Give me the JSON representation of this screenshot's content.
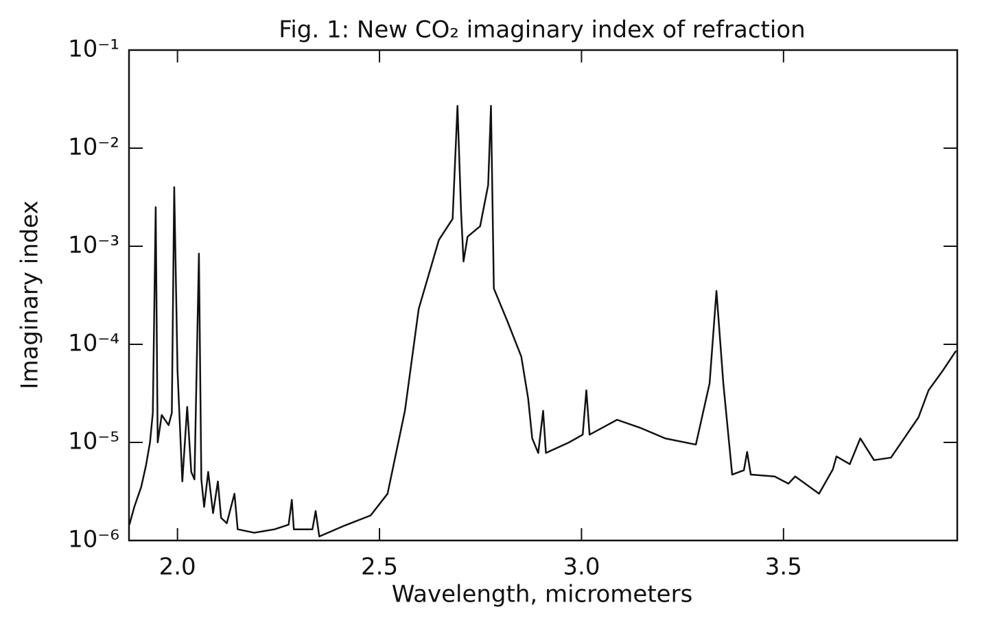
{
  "chart_data": {
    "type": "line",
    "title": "Fig. 1:  New CO₂ imaginary index of refraction",
    "x_label": "Wavelength, micrometers",
    "y_label": "Imaginary index",
    "log_y": true,
    "xlim": [
      1.88,
      3.93
    ],
    "ylim": [
      1e-06,
      0.1
    ],
    "xticks": [
      {
        "value": 2,
        "label": "2.0"
      },
      {
        "value": 2.5,
        "label": "2.5"
      },
      {
        "value": 3,
        "label": "3.0"
      },
      {
        "value": 3.5,
        "label": "3.5"
      }
    ],
    "yticks": [
      {
        "value": 1e-06,
        "label": "10⁻⁶"
      },
      {
        "value": 1e-05,
        "label": "10⁻⁵"
      },
      {
        "value": 0.0001,
        "label": "10⁻⁴"
      },
      {
        "value": 0.001,
        "label": "10⁻³"
      },
      {
        "value": 0.01,
        "label": "10⁻²"
      },
      {
        "value": 0.1,
        "label": "10⁻¹"
      }
    ],
    "x": [
      1.881,
      1.893,
      1.91,
      1.922,
      1.932,
      1.939,
      1.946,
      1.951,
      1.961,
      1.978,
      1.986,
      1.992,
      2.0,
      2.012,
      2.024,
      2.034,
      2.042,
      2.053,
      2.059,
      2.066,
      2.076,
      2.088,
      2.1,
      2.108,
      2.122,
      2.141,
      2.149,
      2.19,
      2.24,
      2.275,
      2.283,
      2.288,
      2.334,
      2.342,
      2.351,
      2.41,
      2.478,
      2.52,
      2.563,
      2.597,
      2.647,
      2.681,
      2.693,
      2.702,
      2.708,
      2.718,
      2.749,
      2.769,
      2.776,
      2.783,
      2.817,
      2.851,
      2.868,
      2.878,
      2.893,
      2.905,
      2.912,
      2.969,
      3.003,
      3.012,
      3.02,
      3.088,
      3.147,
      3.207,
      3.283,
      3.317,
      3.334,
      3.351,
      3.373,
      3.402,
      3.41,
      3.419,
      3.478,
      3.512,
      3.529,
      3.588,
      3.622,
      3.631,
      3.664,
      3.69,
      3.724,
      3.766,
      3.834,
      3.859,
      3.893,
      3.927
    ],
    "series": [
      {
        "name": "imaginary index",
        "color": "#111111",
        "values": [
          1.45e-06,
          2.2e-06,
          3.5e-06,
          5.8e-06,
          1e-05,
          2e-05,
          0.0025,
          1e-05,
          1.9e-05,
          1.5e-05,
          2e-05,
          0.004,
          5.4e-05,
          4e-06,
          2.3e-05,
          5e-06,
          4.2e-06,
          0.00084,
          4.2e-06,
          2.2e-06,
          5e-06,
          1.9e-06,
          4e-06,
          1.7e-06,
          1.5e-06,
          3e-06,
          1.3e-06,
          1.2e-06,
          1.3e-06,
          1.45e-06,
          2.6e-06,
          1.3e-06,
          1.3e-06,
          2e-06,
          1.1e-06,
          1.4e-06,
          1.8e-06,
          3e-06,
          2.1e-05,
          0.00023,
          0.00116,
          0.0019,
          0.027,
          0.0022,
          0.0007,
          0.00125,
          0.0016,
          0.0042,
          0.027,
          0.00037,
          0.00017,
          7.5e-05,
          2.8e-05,
          1.1e-05,
          7.8e-06,
          2.1e-05,
          7.8e-06,
          1e-05,
          1.2e-05,
          3.4e-05,
          1.2e-05,
          1.7e-05,
          1.4e-05,
          1.1e-05,
          9.5e-06,
          4e-05,
          0.00035,
          4e-05,
          4.7e-06,
          5.2e-06,
          8e-06,
          4.7e-06,
          4.5e-06,
          3.8e-06,
          4.5e-06,
          3e-06,
          5.3e-06,
          7.2e-06,
          6e-06,
          1.1e-05,
          6.6e-06,
          7e-06,
          1.8e-05,
          3.4e-05,
          5.3e-05,
          8.6e-05
        ]
      }
    ]
  }
}
